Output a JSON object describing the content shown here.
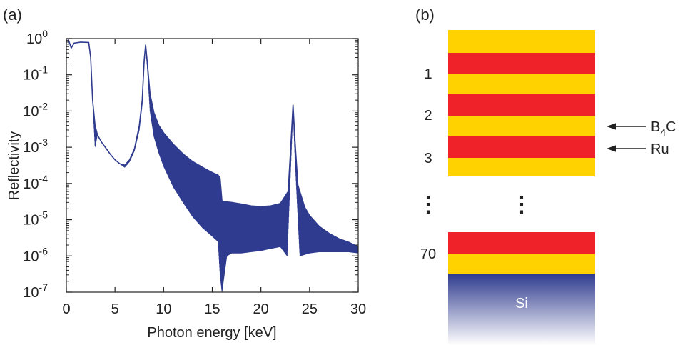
{
  "panels": {
    "a_label": "(a)",
    "b_label": "(b)"
  },
  "chart_data": {
    "type": "line",
    "title": "",
    "xlabel": "Photon energy [keV]",
    "ylabel": "Reflectivity",
    "xlim": [
      0,
      30
    ],
    "ylim_log10": [
      -7,
      0
    ],
    "yscale": "log",
    "grid": false,
    "legend": "none",
    "x_ticks": [
      "0",
      "5",
      "10",
      "15",
      "20",
      "25",
      "30"
    ],
    "y_ticks": [
      {
        "base": "10",
        "exp": "0"
      },
      {
        "base": "10",
        "exp": "-1"
      },
      {
        "base": "10",
        "exp": "-2"
      },
      {
        "base": "10",
        "exp": "-3"
      },
      {
        "base": "10",
        "exp": "-4"
      },
      {
        "base": "10",
        "exp": "-5"
      },
      {
        "base": "10",
        "exp": "-6"
      },
      {
        "base": "10",
        "exp": "-7"
      }
    ],
    "series_color": "#2e3b8e",
    "series": [
      {
        "upper_envelope": [
          [
            0.2,
            0.95
          ],
          [
            0.5,
            0.55
          ],
          [
            0.8,
            0.75
          ],
          [
            1.5,
            0.8
          ],
          [
            2.3,
            0.78
          ],
          [
            2.5,
            0.3
          ],
          [
            2.7,
            0.02
          ],
          [
            2.95,
            0.004
          ],
          [
            3.2,
            0.0022
          ],
          [
            3.6,
            0.0014
          ],
          [
            4.0,
            0.001
          ],
          [
            4.5,
            0.00065
          ],
          [
            5.0,
            0.00045
          ],
          [
            5.5,
            0.00035
          ],
          [
            6.0,
            0.00032
          ],
          [
            6.5,
            0.00045
          ],
          [
            7.0,
            0.0009
          ],
          [
            7.5,
            0.004
          ],
          [
            7.8,
            0.02
          ],
          [
            8.0,
            0.25
          ],
          [
            8.15,
            0.68
          ],
          [
            8.3,
            0.25
          ],
          [
            8.6,
            0.03
          ],
          [
            9.0,
            0.009
          ],
          [
            9.5,
            0.004
          ],
          [
            10.0,
            0.0025
          ],
          [
            11.0,
            0.0012
          ],
          [
            12.0,
            0.00065
          ],
          [
            13.0,
            0.0004
          ],
          [
            14.0,
            0.00028
          ],
          [
            15.0,
            0.0002
          ],
          [
            15.6,
            0.00017
          ],
          [
            15.8,
            0.00014
          ],
          [
            16.0,
            3.2e-05
          ],
          [
            17.0,
            3e-05
          ],
          [
            18.0,
            2.7e-05
          ],
          [
            19.0,
            2.4e-05
          ],
          [
            20.0,
            2.3e-05
          ],
          [
            21.0,
            2.4e-05
          ],
          [
            22.0,
            2.8e-05
          ],
          [
            22.8,
            6e-05
          ],
          [
            23.1,
            0.0015
          ],
          [
            23.3,
            0.015
          ],
          [
            23.5,
            0.0015
          ],
          [
            23.8,
            9e-05
          ],
          [
            24.5,
            2.2e-05
          ],
          [
            25.0,
            1.3e-05
          ],
          [
            26.0,
            6.5e-06
          ],
          [
            27.0,
            4.2e-06
          ],
          [
            28.0,
            3e-06
          ],
          [
            29.0,
            2.4e-06
          ],
          [
            30.0,
            1.8e-06
          ]
        ],
        "lower_envelope": [
          [
            0.2,
            0.95
          ],
          [
            0.5,
            0.55
          ],
          [
            0.8,
            0.75
          ],
          [
            1.5,
            0.8
          ],
          [
            2.3,
            0.78
          ],
          [
            2.5,
            0.3
          ],
          [
            2.7,
            0.02
          ],
          [
            2.95,
            0.001
          ],
          [
            3.2,
            0.0022
          ],
          [
            3.6,
            0.0014
          ],
          [
            4.0,
            0.001
          ],
          [
            4.5,
            0.00065
          ],
          [
            5.0,
            0.00045
          ],
          [
            5.5,
            0.00035
          ],
          [
            6.0,
            0.00028
          ],
          [
            6.5,
            0.0004
          ],
          [
            7.0,
            0.0008
          ],
          [
            7.5,
            0.003
          ],
          [
            7.8,
            0.015
          ],
          [
            8.0,
            0.2
          ],
          [
            8.15,
            0.6
          ],
          [
            8.3,
            0.2
          ],
          [
            8.6,
            0.01
          ],
          [
            9.0,
            0.002
          ],
          [
            9.5,
            0.0007
          ],
          [
            10.0,
            0.0003
          ],
          [
            11.0,
            8e-05
          ],
          [
            12.0,
            3e-05
          ],
          [
            13.0,
            1.2e-05
          ],
          [
            14.0,
            6e-06
          ],
          [
            15.0,
            3.5e-06
          ],
          [
            15.6,
            2.5e-06
          ],
          [
            15.8,
            3e-07
          ],
          [
            16.0,
            1e-07
          ],
          [
            16.5,
            1e-06
          ],
          [
            17.0,
            1.2e-06
          ],
          [
            18.0,
            1.2e-06
          ],
          [
            19.0,
            1.3e-06
          ],
          [
            20.0,
            1.4e-06
          ],
          [
            21.0,
            1.6e-06
          ],
          [
            22.0,
            1.8e-06
          ],
          [
            22.7,
            1e-06
          ],
          [
            23.1,
            0.0005
          ],
          [
            23.3,
            0.012
          ],
          [
            23.5,
            0.0005
          ],
          [
            24.0,
            1e-06
          ],
          [
            25.0,
            1.2e-06
          ],
          [
            26.0,
            1.3e-06
          ],
          [
            27.0,
            1.3e-06
          ],
          [
            28.0,
            1.3e-06
          ],
          [
            29.0,
            1.3e-06
          ],
          [
            30.0,
            1.2e-06
          ]
        ]
      }
    ]
  },
  "stack": {
    "indices": [
      "1",
      "2",
      "3",
      "70"
    ],
    "ellipsis": "⋮",
    "labels": {
      "b4c_base": "B",
      "b4c_sub": "4",
      "b4c_tail": "C",
      "ru": "Ru",
      "substrate": "Si"
    },
    "colors": {
      "b4c": "#ffd200",
      "ru": "#ee2228",
      "si_top": "#2e3b8e",
      "si_bottom": "#ffffff"
    }
  }
}
